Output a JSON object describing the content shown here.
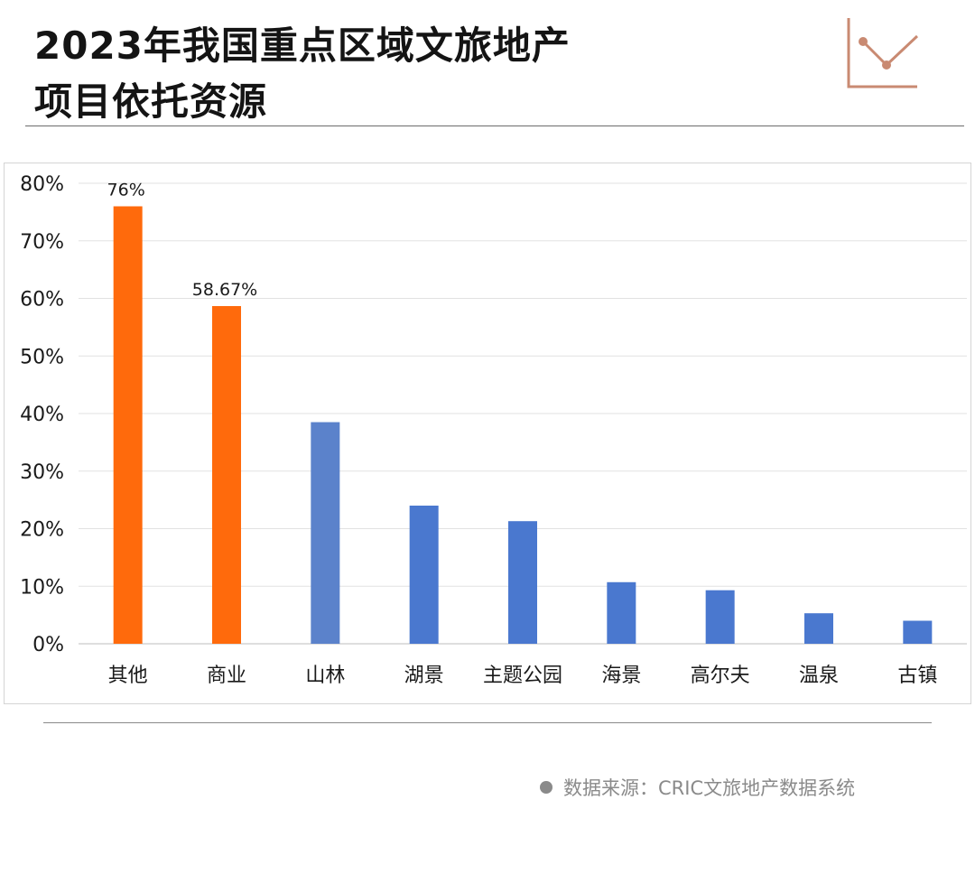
{
  "header": {
    "title_line1": "2023年我国重点区域文旅地产",
    "title_line2": "项目依托资源",
    "icon": "line-chart-icon",
    "icon_color": "#c98a72"
  },
  "chart_data": {
    "type": "bar",
    "title": "2023年我国重点区域文旅地产项目依托资源",
    "categories": [
      "其他",
      "商业",
      "山林",
      "湖景",
      "主题公园",
      "海景",
      "高尔夫",
      "温泉",
      "古镇"
    ],
    "values": [
      76,
      58.67,
      38.5,
      24,
      21.3,
      10.7,
      9.3,
      5.3,
      4
    ],
    "data_labels": [
      "76%",
      "58.67%",
      "",
      "",
      "",
      "",
      "",
      "",
      ""
    ],
    "bar_colors": [
      "#ff6a0c",
      "#ff6a0c",
      "#5b82cb",
      "#4a78cf",
      "#4a78cf",
      "#4a78cf",
      "#4a78cf",
      "#4a78cf",
      "#4a78cf"
    ],
    "ylim": [
      0,
      80
    ],
    "yticks": [
      "0%",
      "10%",
      "20%",
      "30%",
      "40%",
      "50%",
      "60%",
      "70%",
      "80%"
    ],
    "xlabel": "",
    "ylabel": "",
    "grid": true,
    "grid_color": "#e2e2e2"
  },
  "footer": {
    "source": "数据来源：CRIC文旅地产数据系统"
  }
}
